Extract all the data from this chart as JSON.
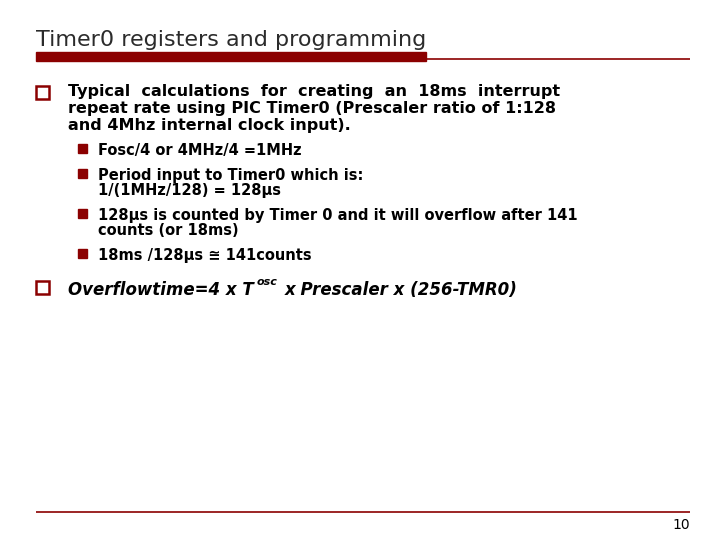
{
  "title": "Timer0 registers and programming",
  "title_color": "#2b2b2b",
  "title_fontsize": 16,
  "bg_color": "#ffffff",
  "dark_red": "#8B0000",
  "bullet1_lines": [
    "Typical  calculations  for  creating  an  18ms  interrupt",
    "repeat rate using PIC Timer0 (Prescaler ratio of 1:128",
    "and 4Mhz internal clock input)."
  ],
  "sub_bullets": [
    [
      "Fosc/4 or 4MHz/4 =1MHz"
    ],
    [
      "Period input to Timer0 which is:",
      "1/(1MHz/128) = 128μs"
    ],
    [
      "128μs is counted by Timer 0 and it will overflow after 141",
      "counts (or 18ms)"
    ],
    [
      "18ms /128μs ≅ 141counts"
    ]
  ],
  "page_number": "10"
}
